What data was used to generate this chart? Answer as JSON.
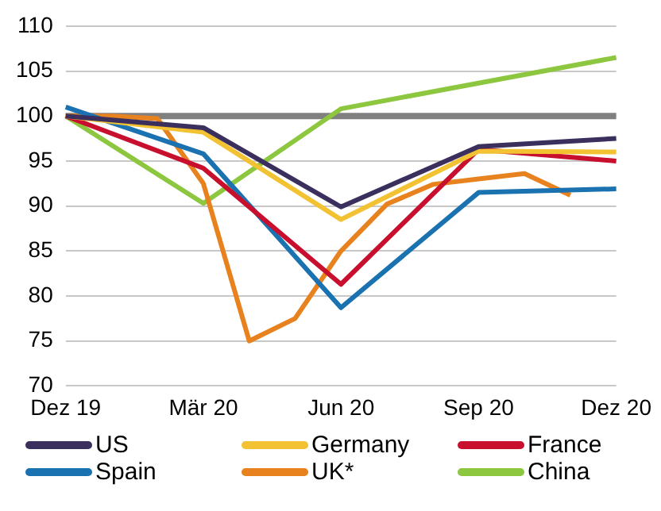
{
  "chart_data": {
    "type": "line",
    "categories": [
      "Dez 19",
      null,
      null,
      "Mär 20",
      null,
      null,
      "Jun 20",
      null,
      null,
      "Sep 20",
      null,
      null,
      "Dez 20"
    ],
    "series": [
      {
        "name": "US",
        "color": "#3b2f5e",
        "values": [
          100,
          null,
          null,
          98.7,
          null,
          null,
          89.9,
          null,
          null,
          96.6,
          null,
          null,
          97.5
        ]
      },
      {
        "name": "Germany",
        "color": "#f2c233",
        "values": [
          100,
          null,
          null,
          98.2,
          null,
          null,
          88.5,
          null,
          null,
          96.1,
          null,
          null,
          96
        ]
      },
      {
        "name": "France",
        "color": "#c8102e",
        "values": [
          100,
          null,
          null,
          94.2,
          null,
          null,
          81.3,
          null,
          null,
          96.3,
          null,
          null,
          95
        ]
      },
      {
        "name": "Spain",
        "color": "#1a72b0",
        "values": [
          101,
          null,
          null,
          95.8,
          null,
          null,
          78.7,
          null,
          null,
          91.5,
          null,
          null,
          91.9
        ]
      },
      {
        "name": "UK*",
        "color": "#e8821e",
        "values": [
          100,
          100,
          99.7,
          92.5,
          75,
          77.5,
          85,
          90.2,
          92.4,
          93,
          93.6,
          91.2,
          null
        ]
      },
      {
        "name": "China",
        "color": "#8dc63f",
        "values": [
          100,
          null,
          null,
          90.3,
          null,
          null,
          100.8,
          null,
          null,
          null,
          null,
          null,
          106.5
        ]
      }
    ],
    "ylim": [
      70,
      110
    ],
    "yticks": [
      70,
      75,
      80,
      85,
      90,
      95,
      100,
      105,
      110
    ],
    "grid": "y",
    "legend": "bottom",
    "marker": "none",
    "line_style": "solid",
    "ref_lines": [
      {
        "axis": "y",
        "value": 100,
        "color": "#808080"
      }
    ]
  }
}
